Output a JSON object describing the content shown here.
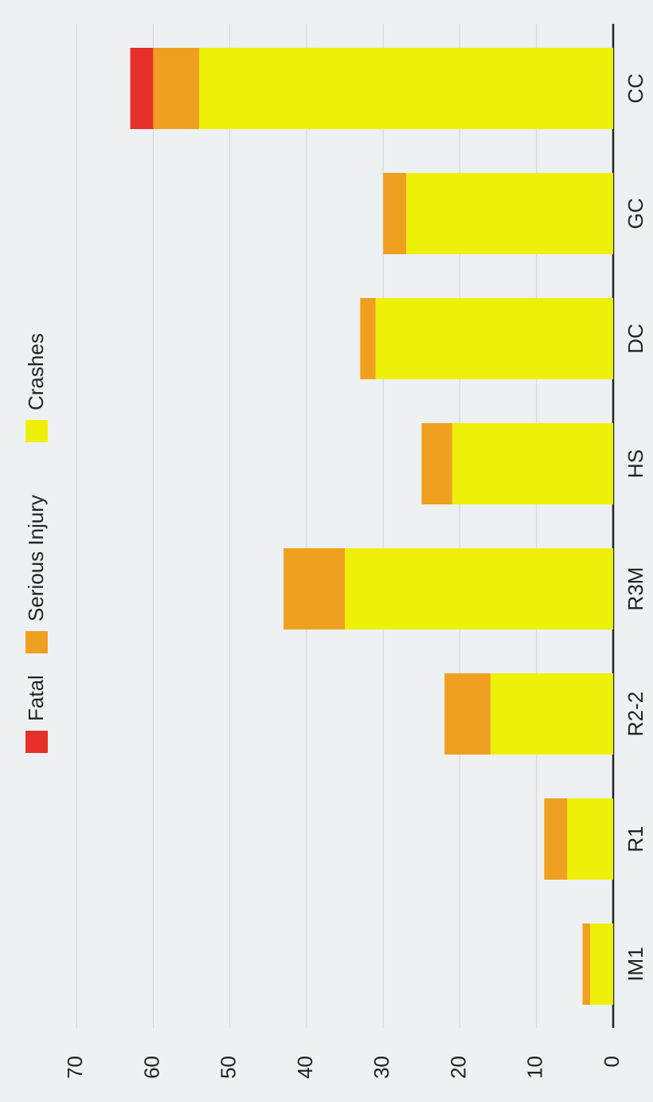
{
  "chart_data": {
    "type": "stacked_bar",
    "categories": [
      "IM1",
      "R1",
      "R2-2",
      "R3M",
      "HS",
      "DC",
      "GC",
      "CC"
    ],
    "series": [
      {
        "name": "Fatal",
        "color": "#e8302a",
        "values": [
          0,
          0,
          0,
          0,
          0,
          0,
          0,
          3
        ]
      },
      {
        "name": "Serious Injury",
        "color": "#f0a020",
        "values": [
          1,
          3,
          6,
          8,
          4,
          2,
          3,
          6
        ]
      },
      {
        "name": "Crashes",
        "color": "#eef00a",
        "values": [
          3,
          6,
          16,
          35,
          21,
          31,
          27,
          54
        ]
      }
    ],
    "ylim": [
      0,
      75
    ],
    "yticks": [
      0,
      10,
      20,
      30,
      40,
      50,
      60,
      70
    ],
    "grid": true
  }
}
